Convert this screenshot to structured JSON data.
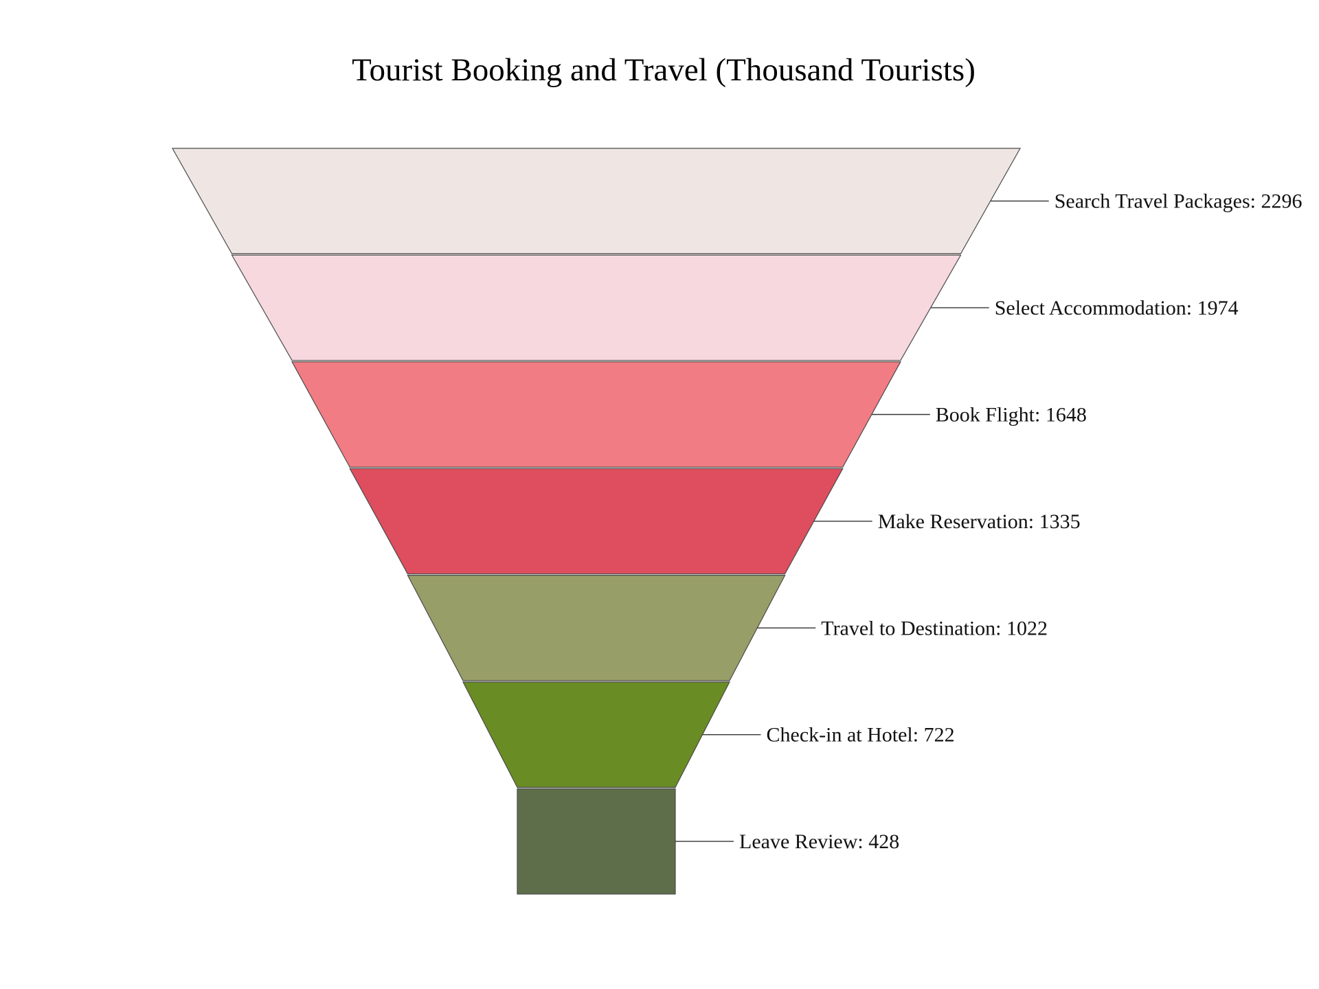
{
  "chart_data": {
    "type": "funnel",
    "title": "Tourist Booking and Travel (Thousand Tourists)",
    "label_format": "{stage}: {value}",
    "stages": [
      {
        "stage": "Search Travel Packages",
        "value": 2296,
        "color": "#EFE6E4"
      },
      {
        "stage": "Select Accommodation",
        "value": 1974,
        "color": "#F6D8DE"
      },
      {
        "stage": "Book Flight",
        "value": 1648,
        "color": "#F27C84"
      },
      {
        "stage": "Make Reservation",
        "value": 1335,
        "color": "#DE4E5E"
      },
      {
        "stage": "Travel to Destination",
        "value": 1022,
        "color": "#989E67"
      },
      {
        "stage": "Check-in at Hotel",
        "value": 722,
        "color": "#6A8C24"
      },
      {
        "stage": "Leave Review",
        "value": 428,
        "color": "#5E6E4A"
      }
    ]
  }
}
